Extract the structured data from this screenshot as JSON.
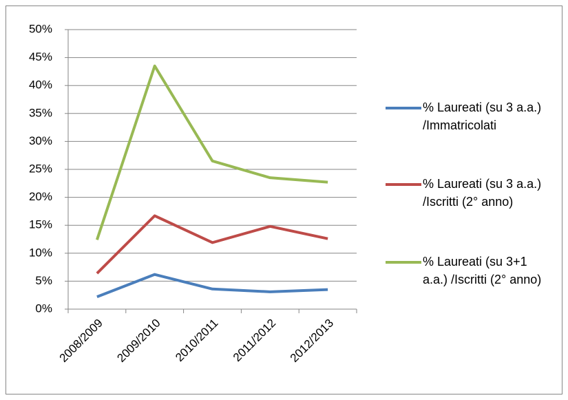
{
  "chart_data": {
    "type": "line",
    "categories": [
      "2008/2009",
      "2009/2010",
      "2010/2011",
      "2011/2012",
      "2012/2013"
    ],
    "series": [
      {
        "name": "% Laureati (su 3 a.a.) /Immatricolati",
        "color": "#4a7ebb",
        "values": [
          2.2,
          6.2,
          3.6,
          3.1,
          3.5
        ]
      },
      {
        "name": "% Laureati  (su 3 a.a.) /Iscritti (2° anno)",
        "color": "#be4b48",
        "values": [
          6.4,
          16.7,
          11.9,
          14.8,
          12.6
        ]
      },
      {
        "name": "% Laureati  (su 3+1 a.a.) /Iscritti (2° anno)",
        "color": "#98b954",
        "values": [
          12.4,
          43.5,
          26.5,
          23.5,
          22.7
        ]
      }
    ],
    "ylim": [
      0,
      50
    ],
    "yticks": [
      {
        "value": 0,
        "label": "0%"
      },
      {
        "value": 5,
        "label": "5%"
      },
      {
        "value": 10,
        "label": "10%"
      },
      {
        "value": 15,
        "label": "15%"
      },
      {
        "value": 20,
        "label": "20%"
      },
      {
        "value": 25,
        "label": "25%"
      },
      {
        "value": 30,
        "label": "30%"
      },
      {
        "value": 35,
        "label": "35%"
      },
      {
        "value": 40,
        "label": "40%"
      },
      {
        "value": 45,
        "label": "45%"
      },
      {
        "value": 50,
        "label": "50%"
      }
    ],
    "grid": true,
    "legend": "right"
  }
}
